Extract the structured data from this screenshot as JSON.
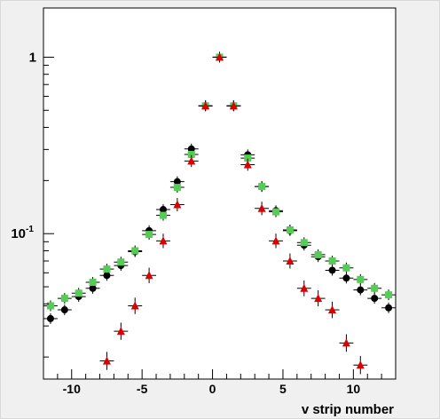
{
  "chart_data": {
    "type": "scatter",
    "xlabel": "v strip number",
    "ylabel": "",
    "xlim": [
      -12,
      13
    ],
    "ylim": [
      0.015,
      1.9
    ],
    "yscale": "log",
    "grid": false,
    "x_ticks": [
      {
        "value": -10,
        "label": "-10"
      },
      {
        "value": -5,
        "label": "-5"
      },
      {
        "value": 0,
        "label": "0"
      },
      {
        "value": 5,
        "label": "5"
      },
      {
        "value": 10,
        "label": "10"
      }
    ],
    "y_ticks": [
      {
        "value": 1,
        "label": "1"
      },
      {
        "value": 0.1,
        "label": "10",
        "sup": "-1"
      }
    ],
    "series": [
      {
        "marker": "circle",
        "color": "#000000",
        "x": [
          -11.5,
          -10.5,
          -9.5,
          -8.5,
          -7.5,
          -6.5,
          -5.5,
          -4.5,
          -3.5,
          -2.5,
          -1.5,
          -0.5,
          0.5,
          1.5,
          2.5,
          3.5,
          4.5,
          5.5,
          6.5,
          7.5,
          8.5,
          9.5,
          10.5,
          11.5,
          12.5
        ],
        "y": [
          0.033,
          0.037,
          0.044,
          0.049,
          0.058,
          0.066,
          0.079,
          0.104,
          0.137,
          0.197,
          0.302,
          0.53,
          1.0,
          0.53,
          0.28,
          0.185,
          0.135,
          0.104,
          0.086,
          0.074,
          0.062,
          0.056,
          0.048,
          0.043,
          0.038
        ]
      },
      {
        "marker": "square",
        "color": "#55cc55",
        "x": [
          -11.5,
          -10.5,
          -9.5,
          -8.5,
          -7.5,
          -6.5,
          -5.5,
          -4.5,
          -3.5,
          -2.5,
          -1.5,
          -0.5,
          0.5,
          1.5,
          2.5,
          3.5,
          4.5,
          5.5,
          6.5,
          7.5,
          8.5,
          9.5,
          10.5,
          11.5,
          12.5
        ],
        "y": [
          0.039,
          0.043,
          0.046,
          0.053,
          0.063,
          0.069,
          0.08,
          0.099,
          0.127,
          0.183,
          0.281,
          0.53,
          1.0,
          0.53,
          0.268,
          0.185,
          0.133,
          0.105,
          0.089,
          0.076,
          0.07,
          0.064,
          0.055,
          0.049,
          0.045
        ]
      },
      {
        "marker": "triangle",
        "color": "#dd0000",
        "x": [
          -7.5,
          -6.5,
          -5.5,
          -4.5,
          -3.5,
          -2.5,
          -1.5,
          -0.5,
          0.5,
          1.5,
          2.5,
          3.5,
          4.5,
          5.5,
          6.5,
          7.5,
          8.5,
          9.5,
          10.5
        ],
        "y": [
          0.019,
          0.028,
          0.039,
          0.058,
          0.091,
          0.146,
          0.258,
          0.53,
          1.0,
          0.53,
          0.246,
          0.139,
          0.091,
          0.07,
          0.049,
          0.043,
          0.037,
          0.024,
          0.018
        ]
      }
    ]
  }
}
